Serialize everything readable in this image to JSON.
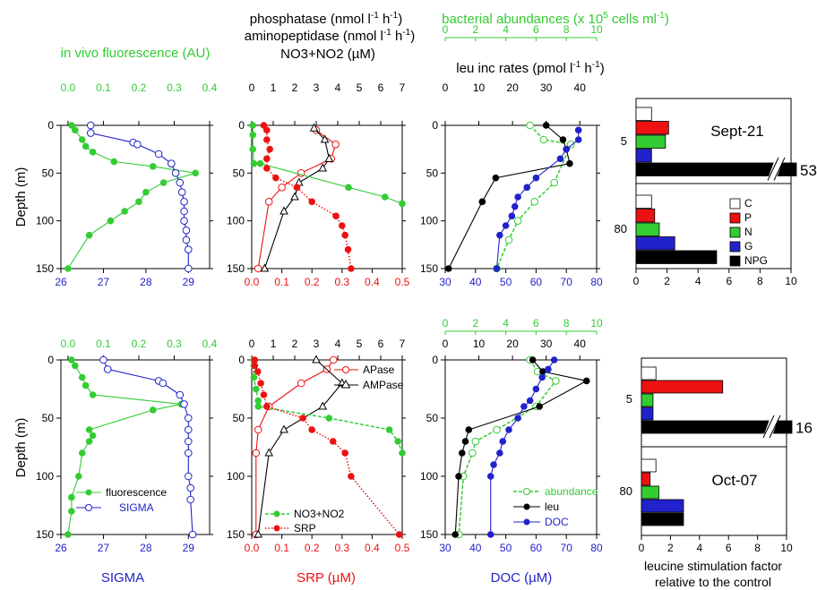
{
  "colors": {
    "green": "#33cc33",
    "blue": "#2222cc",
    "red": "#ee1111",
    "black": "#000000",
    "white": "#ffffff"
  },
  "labels": {
    "fluor_title": "in vivo fluorescence (AU)",
    "phos_title": "phosphatase (nmol l",
    "amino_title": "aminopeptidase (nmol l",
    "no3_title": "NO3+NO2 (µM)",
    "bact_title": "bacterial abundances (x 10",
    "bact_tail": " cells ml",
    "leu_title": "leu inc rates (pmol l",
    "sup_neg1": "-1",
    "sup_5": "5",
    "h_unit": " h",
    "close_paren": ")",
    "depth": "Depth (m)",
    "sigma_axis": "SIGMA",
    "srp_axis": "SRP (µM)",
    "doc_axis": "DOC (µM)",
    "stim_axis_1": "leucine stimulation factor",
    "stim_axis_2": "relative to the control"
  },
  "chart_data": [
    {
      "type": "line",
      "id": "sept-profile-fluor-sigma",
      "y_axis": {
        "label": "Depth (m)",
        "range": [
          150,
          0
        ],
        "ticks": [
          0,
          50,
          100,
          150
        ]
      },
      "top_axis": {
        "label": "in vivo fluorescence (AU)",
        "range": [
          -0.02,
          0.4
        ],
        "ticks": [
          0.0,
          0.1,
          0.2,
          0.3,
          0.4
        ]
      },
      "bottom_axis": {
        "label": "",
        "range": [
          26,
          29.5
        ],
        "ticks": [
          26,
          27,
          28,
          29
        ]
      },
      "series": [
        {
          "key": "fluorescence",
          "axis": "top",
          "color": "green",
          "marker": "filled",
          "x": [
            0.01,
            0.02,
            0.04,
            0.05,
            0.07,
            0.13,
            0.24,
            0.36,
            0.27,
            0.22,
            0.2,
            0.16,
            0.12,
            0.06,
            0.0
          ],
          "y": [
            0,
            5,
            15,
            22,
            28,
            38,
            43,
            50,
            60,
            70,
            80,
            90,
            100,
            115,
            150
          ]
        },
        {
          "key": "sigma",
          "axis": "bottom",
          "color": "blue",
          "marker": "open",
          "x": [
            26.7,
            26.7,
            27.7,
            27.8,
            28.3,
            28.6,
            28.7,
            28.8,
            28.85,
            28.9,
            28.9,
            28.9,
            28.95,
            28.95,
            29.0,
            29.0
          ],
          "y": [
            0,
            8,
            18,
            20,
            30,
            40,
            50,
            60,
            70,
            80,
            90,
            100,
            110,
            120,
            130,
            150
          ]
        }
      ]
    },
    {
      "type": "line",
      "id": "sept-profile-nutrients",
      "y_axis": {
        "range": [
          150,
          0
        ],
        "ticks": [
          0,
          50,
          100,
          150
        ]
      },
      "top_axis": {
        "range": [
          0,
          7
        ],
        "ticks": [
          0,
          1,
          2,
          3,
          4,
          5,
          6,
          7
        ]
      },
      "bottom_axis": {
        "range": [
          0,
          0.5
        ],
        "ticks": [
          0.0,
          0.1,
          0.2,
          0.3,
          0.4,
          0.5
        ]
      },
      "series": [
        {
          "key": "apase",
          "axis": "top",
          "color": "red",
          "marker": "open",
          "x": [
            3.0,
            3.9,
            3.7,
            2.3,
            1.4,
            0.8,
            0.3
          ],
          "y": [
            5,
            20,
            35,
            50,
            65,
            80,
            150
          ]
        },
        {
          "key": "ampase",
          "axis": "top",
          "color": "black",
          "marker": "triangle",
          "x": [
            2.9,
            3.4,
            3.6,
            3.3,
            2.2,
            2.0,
            1.5,
            0.6
          ],
          "y": [
            3,
            15,
            35,
            45,
            60,
            75,
            90,
            150
          ]
        },
        {
          "key": "no3",
          "axis": "top",
          "color": "green",
          "marker": "filled",
          "x": [
            0.05,
            0.05,
            0.05,
            0.1,
            0.4,
            4.5,
            6.2,
            7.0
          ],
          "y": [
            0,
            10,
            25,
            40,
            40,
            65,
            75,
            82
          ]
        },
        {
          "key": "srp",
          "axis": "bottom",
          "color": "red",
          "marker": "filled",
          "dotted": true,
          "x": [
            0.04,
            0.05,
            0.05,
            0.06,
            0.05,
            0.05,
            0.08,
            0.15,
            0.2,
            0.28,
            0.3,
            0.31,
            0.32,
            0.33
          ],
          "y": [
            0,
            5,
            15,
            25,
            35,
            45,
            55,
            65,
            80,
            95,
            105,
            115,
            130,
            150
          ]
        }
      ]
    },
    {
      "type": "line",
      "id": "sept-profile-bact",
      "y_axis": {
        "range": [
          150,
          0
        ],
        "ticks": [
          0,
          50,
          100,
          150
        ]
      },
      "top_axis": {
        "label": "bacterial abundances (x 10^5 cells ml^-1)",
        "range": [
          0,
          10
        ],
        "ticks": [
          0,
          2,
          4,
          6,
          8,
          10
        ]
      },
      "top_axis2": {
        "label": "leu inc rates (pmol l^-1 h^-1)",
        "range": [
          0,
          45
        ],
        "ticks": [
          0,
          10,
          20,
          30,
          40
        ]
      },
      "bottom_axis": {
        "range": [
          30,
          80
        ],
        "ticks": [
          30,
          40,
          50,
          60,
          70,
          80
        ]
      },
      "series": [
        {
          "key": "abundance",
          "axis": "top",
          "color": "green",
          "marker": "open",
          "dashed": true,
          "x": [
            5.6,
            6.5,
            8.3,
            7.2,
            5.9,
            4.8,
            4.2,
            3.4
          ],
          "y": [
            0,
            15,
            20,
            60,
            80,
            100,
            120,
            150
          ]
        },
        {
          "key": "leu",
          "axis": "top2",
          "color": "black",
          "marker": "filled",
          "x": [
            30,
            35,
            36,
            37,
            15,
            11,
            1
          ],
          "y": [
            0,
            15,
            25,
            40,
            55,
            80,
            150
          ]
        },
        {
          "key": "doc",
          "axis": "bottom",
          "color": "blue",
          "marker": "filled",
          "x": [
            74,
            74,
            70,
            68,
            60,
            57,
            54,
            53,
            52,
            50,
            48,
            47
          ],
          "y": [
            5,
            15,
            25,
            35,
            55,
            65,
            75,
            85,
            95,
            105,
            115,
            150
          ]
        }
      ]
    },
    {
      "type": "bar",
      "id": "sept-stimulation",
      "title": "Sept-21",
      "orientation": "horizontal",
      "groups": [
        "5",
        "80"
      ],
      "categories": [
        "C",
        "P",
        "N",
        "G",
        "NPG"
      ],
      "values": [
        [
          1.0,
          2.1,
          1.9,
          1.0,
          53
        ],
        [
          1.0,
          1.2,
          1.5,
          2.5,
          5.2
        ]
      ],
      "x_range": [
        0,
        10
      ],
      "ticks": [
        0,
        2,
        4,
        6,
        8,
        10
      ],
      "break_label": "53",
      "colors": [
        "white",
        "red",
        "green",
        "blue",
        "black"
      ]
    },
    {
      "type": "line",
      "id": "oct-profile-fluor-sigma",
      "y_axis": {
        "label": "Depth (m)",
        "range": [
          150,
          0
        ],
        "ticks": [
          0,
          50,
          100,
          150
        ]
      },
      "top_axis": {
        "range": [
          -0.02,
          0.4
        ],
        "ticks": [
          0.0,
          0.1,
          0.2,
          0.3,
          0.4
        ]
      },
      "bottom_axis": {
        "label": "SIGMA",
        "range": [
          26,
          29.5
        ],
        "ticks": [
          26,
          27,
          28,
          29
        ]
      },
      "legend": [
        "fluorescence",
        "SIGMA"
      ],
      "series": [
        {
          "key": "fluorescence",
          "axis": "top",
          "color": "green",
          "marker": "filled",
          "x": [
            0.01,
            0.02,
            0.04,
            0.05,
            0.07,
            0.32,
            0.24,
            0.06,
            0.07,
            0.06,
            0.04,
            0.03,
            0.01,
            0.01,
            0.0
          ],
          "y": [
            0,
            5,
            15,
            22,
            30,
            38,
            43,
            60,
            65,
            70,
            80,
            100,
            118,
            130,
            150
          ]
        },
        {
          "key": "sigma",
          "axis": "bottom",
          "color": "blue",
          "marker": "open",
          "x": [
            27.0,
            27.1,
            28.3,
            28.4,
            28.8,
            28.9,
            29.0,
            29.0,
            29.0,
            29.0,
            29.0,
            29.05,
            29.05,
            29.1
          ],
          "y": [
            0,
            8,
            18,
            20,
            30,
            38,
            50,
            60,
            70,
            80,
            100,
            110,
            120,
            150
          ]
        }
      ]
    },
    {
      "type": "line",
      "id": "oct-profile-nutrients",
      "y_axis": {
        "range": [
          150,
          0
        ],
        "ticks": [
          0,
          50,
          100,
          150
        ]
      },
      "top_axis": {
        "range": [
          0,
          7
        ],
        "ticks": [
          0,
          1,
          2,
          3,
          4,
          5,
          6,
          7
        ]
      },
      "bottom_axis": {
        "label": "SRP (µM)",
        "range": [
          0,
          0.5
        ],
        "ticks": [
          0.0,
          0.1,
          0.2,
          0.3,
          0.4,
          0.5
        ]
      },
      "legend": [
        "APase",
        "AMPase",
        "NO3+NO2",
        "SRP"
      ],
      "series": [
        {
          "key": "apase",
          "axis": "top",
          "color": "red",
          "marker": "open",
          "x": [
            3.8,
            3.5,
            2.3,
            0.8,
            0.3,
            0.2,
            0.2
          ],
          "y": [
            0,
            8,
            20,
            40,
            60,
            80,
            150
          ]
        },
        {
          "key": "ampase",
          "axis": "top",
          "color": "black",
          "marker": "triangle",
          "x": [
            3.0,
            4.2,
            3.3,
            1.5,
            0.8,
            0.3
          ],
          "y": [
            0,
            20,
            40,
            60,
            80,
            150
          ]
        },
        {
          "key": "no3",
          "axis": "top",
          "color": "green",
          "marker": "filled",
          "dashed": true,
          "x": [
            0.1,
            0.1,
            0.1,
            0.2,
            0.3,
            0.3,
            3.6,
            6.4,
            6.8,
            7.0
          ],
          "y": [
            0,
            5,
            15,
            25,
            35,
            40,
            50,
            60,
            70,
            80
          ]
        },
        {
          "key": "srp",
          "axis": "bottom",
          "color": "red",
          "marker": "filled",
          "dotted": true,
          "x": [
            0.01,
            0.01,
            0.02,
            0.03,
            0.04,
            0.05,
            0.17,
            0.2,
            0.27,
            0.31,
            0.33,
            0.49
          ],
          "y": [
            0,
            5,
            10,
            20,
            30,
            40,
            50,
            60,
            70,
            80,
            100,
            150
          ]
        }
      ]
    },
    {
      "type": "line",
      "id": "oct-profile-bact",
      "y_axis": {
        "range": [
          150,
          0
        ],
        "ticks": [
          0,
          50,
          100,
          150
        ]
      },
      "top_axis": {
        "range": [
          0,
          10
        ],
        "ticks": [
          0,
          2,
          4,
          6,
          8,
          10
        ]
      },
      "top_axis2": {
        "range": [
          0,
          45
        ],
        "ticks": [
          0,
          10,
          20,
          30,
          40
        ]
      },
      "bottom_axis": {
        "label": "DOC (µM)",
        "range": [
          30,
          80
        ],
        "ticks": [
          30,
          40,
          50,
          60,
          70,
          80
        ]
      },
      "legend": [
        "abundance",
        "leu",
        "DOC"
      ],
      "series": [
        {
          "key": "abundance",
          "axis": "top",
          "color": "green",
          "marker": "open",
          "dashed": true,
          "x": [
            5.6,
            6.1,
            7.3,
            6.0,
            3.4,
            2.0,
            1.8,
            1.2,
            0.9
          ],
          "y": [
            0,
            10,
            18,
            40,
            60,
            70,
            80,
            100,
            150
          ]
        },
        {
          "key": "leu",
          "axis": "top2",
          "color": "black",
          "marker": "filled",
          "x": [
            26,
            29,
            42,
            28,
            7,
            6,
            5,
            4,
            3
          ],
          "y": [
            0,
            10,
            18,
            40,
            60,
            70,
            80,
            100,
            150
          ]
        },
        {
          "key": "doc",
          "axis": "bottom",
          "color": "blue",
          "marker": "filled",
          "x": [
            66,
            64,
            62,
            60,
            58,
            56,
            54,
            51,
            49,
            48,
            46,
            45,
            45
          ],
          "y": [
            0,
            8,
            15,
            25,
            35,
            40,
            50,
            60,
            70,
            80,
            90,
            100,
            150
          ]
        }
      ]
    },
    {
      "type": "bar",
      "id": "oct-stimulation",
      "title": "Oct-07",
      "orientation": "horizontal",
      "groups": [
        "5",
        "80"
      ],
      "categories": [
        "C",
        "P",
        "N",
        "G",
        "NPG"
      ],
      "values": [
        [
          1.0,
          5.6,
          0.8,
          0.8,
          16
        ],
        [
          1.0,
          0.6,
          1.2,
          2.9,
          2.9
        ]
      ],
      "x_range": [
        0,
        10
      ],
      "ticks": [
        0,
        2,
        4,
        6,
        8,
        10
      ],
      "break_label": "16",
      "colors": [
        "white",
        "red",
        "green",
        "blue",
        "black"
      ]
    }
  ],
  "legend": {
    "stim": [
      "C",
      "P",
      "N",
      "G",
      "NPG"
    ],
    "oct_fluor": "fluorescence",
    "oct_sigma": "SIGMA",
    "oct_apase": "APase",
    "oct_ampase": "AMPase",
    "oct_no3": "NO3+NO2",
    "oct_srp": "SRP",
    "oct_abundance": "abundance",
    "oct_leu": "leu",
    "oct_doc": "DOC"
  }
}
